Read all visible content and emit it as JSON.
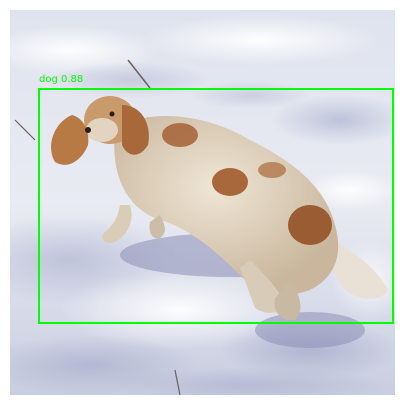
{
  "image": {
    "subject": "dog",
    "setting": "snow"
  },
  "detection": {
    "label": "dog 0.88",
    "box_color": "#00ff00"
  }
}
